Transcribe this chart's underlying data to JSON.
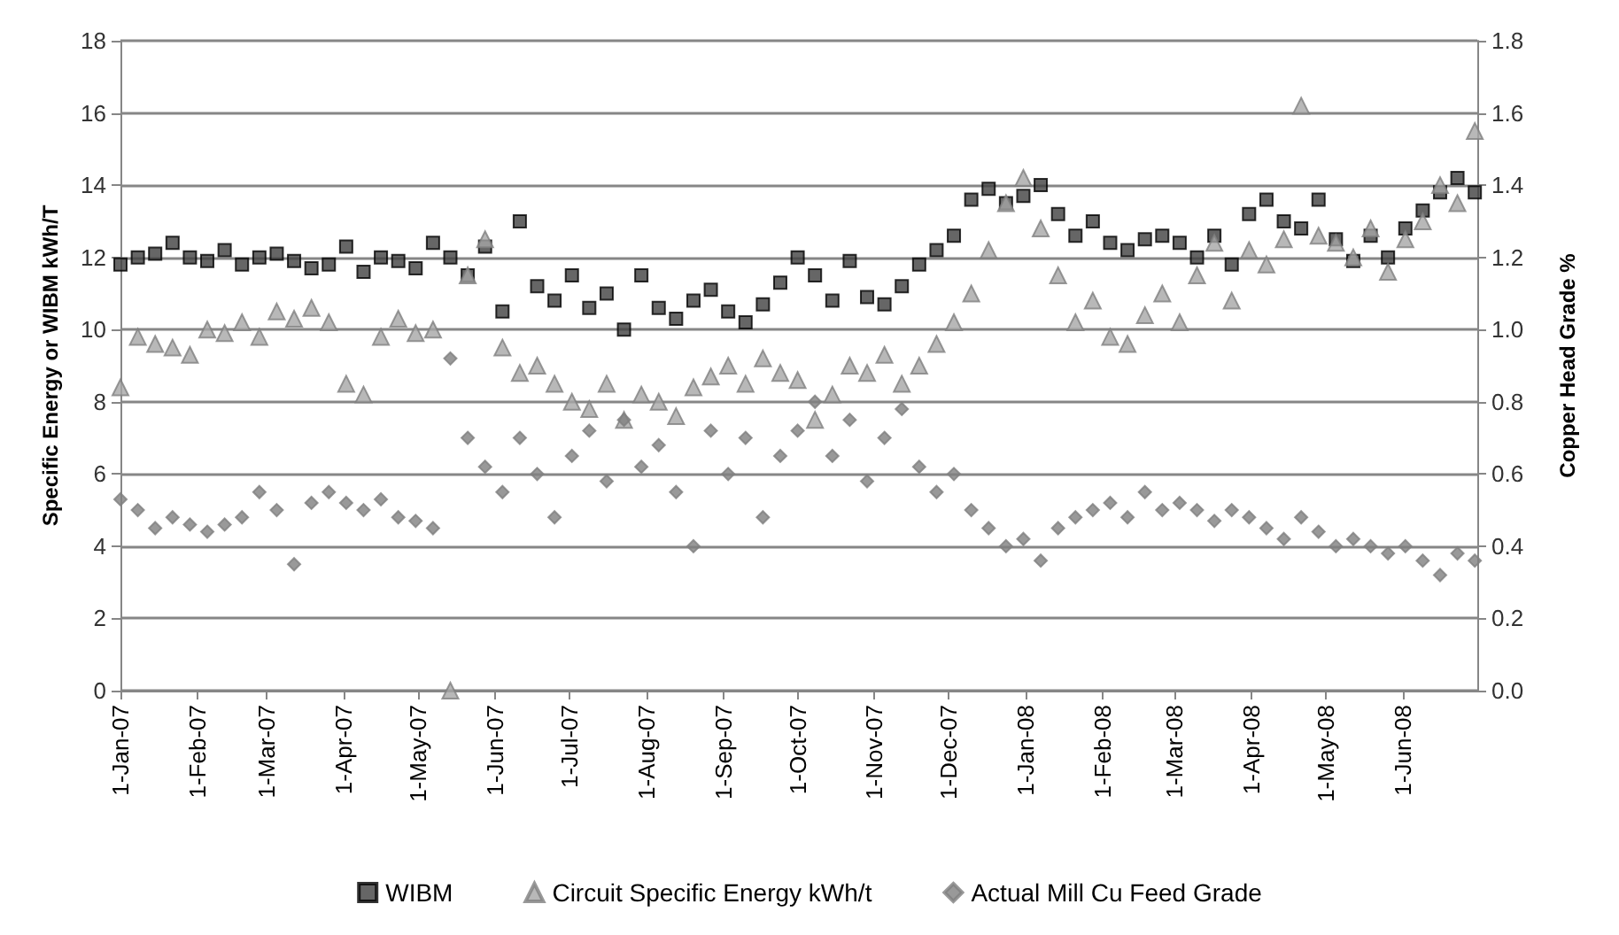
{
  "chart_data": {
    "type": "scatter",
    "ylabel": "Specific Energy or WIBM kWh/T",
    "y2label": "Copper Head Grade %",
    "x": [
      "2007-01-01",
      "2007-01-08",
      "2007-01-15",
      "2007-01-22",
      "2007-01-29",
      "2007-02-05",
      "2007-02-12",
      "2007-02-19",
      "2007-02-26",
      "2007-03-05",
      "2007-03-12",
      "2007-03-19",
      "2007-03-26",
      "2007-04-02",
      "2007-04-09",
      "2007-04-16",
      "2007-04-23",
      "2007-04-30",
      "2007-05-07",
      "2007-05-14",
      "2007-05-21",
      "2007-05-28",
      "2007-06-04",
      "2007-06-11",
      "2007-06-18",
      "2007-06-25",
      "2007-07-02",
      "2007-07-09",
      "2007-07-16",
      "2007-07-23",
      "2007-07-30",
      "2007-08-06",
      "2007-08-13",
      "2007-08-20",
      "2007-08-27",
      "2007-09-03",
      "2007-09-10",
      "2007-09-17",
      "2007-09-24",
      "2007-10-01",
      "2007-10-08",
      "2007-10-15",
      "2007-10-22",
      "2007-10-29",
      "2007-11-05",
      "2007-11-12",
      "2007-11-19",
      "2007-11-26",
      "2007-12-03",
      "2007-12-10",
      "2007-12-17",
      "2007-12-24",
      "2007-12-31",
      "2008-01-07",
      "2008-01-14",
      "2008-01-21",
      "2008-01-28",
      "2008-02-04",
      "2008-02-11",
      "2008-02-18",
      "2008-02-25",
      "2008-03-03",
      "2008-03-10",
      "2008-03-17",
      "2008-03-24",
      "2008-03-31",
      "2008-04-07",
      "2008-04-14",
      "2008-04-21",
      "2008-04-28",
      "2008-05-05",
      "2008-05-12",
      "2008-05-19",
      "2008-05-26",
      "2008-06-02",
      "2008-06-09",
      "2008-06-16",
      "2008-06-23",
      "2008-06-30"
    ],
    "series": [
      {
        "name": "WIBM",
        "color": "#404040",
        "marker": "square",
        "values": [
          11.8,
          12.0,
          12.1,
          12.4,
          12.0,
          11.9,
          12.2,
          11.8,
          12.0,
          12.1,
          11.9,
          11.7,
          11.8,
          12.3,
          11.6,
          12.0,
          11.9,
          11.7,
          12.4,
          12.0,
          11.5,
          12.3,
          10.5,
          13.0,
          11.2,
          10.8,
          11.5,
          10.6,
          11.0,
          10.0,
          11.5,
          10.6,
          10.3,
          10.8,
          11.1,
          10.5,
          10.2,
          10.7,
          11.3,
          12.0,
          11.5,
          10.8,
          11.9,
          10.9,
          10.7,
          11.2,
          11.8,
          12.2,
          12.6,
          13.6,
          13.9,
          13.5,
          13.7,
          14.0,
          13.2,
          12.6,
          13.0,
          12.4,
          12.2,
          12.5,
          12.6,
          12.4,
          12.0,
          12.6,
          11.8,
          13.2,
          13.6,
          13.0,
          12.8,
          13.6,
          12.5,
          11.9,
          12.6,
          12.0,
          12.8,
          13.3,
          13.8,
          14.2,
          13.8
        ]
      },
      {
        "name": "Circuit Specific Energy kWh/t",
        "color": "#a6a6a6",
        "marker": "triangle",
        "values": [
          8.4,
          9.8,
          9.6,
          9.5,
          9.3,
          10.0,
          9.9,
          10.2,
          9.8,
          10.5,
          10.3,
          10.6,
          10.2,
          8.5,
          8.2,
          9.8,
          10.3,
          9.9,
          10.0,
          0,
          11.5,
          12.5,
          9.5,
          8.8,
          9.0,
          8.5,
          8.0,
          7.8,
          8.5,
          7.5,
          8.2,
          8.0,
          7.6,
          8.4,
          8.7,
          9.0,
          8.5,
          9.2,
          8.8,
          8.6,
          7.5,
          8.2,
          9.0,
          8.8,
          9.3,
          8.5,
          9.0,
          9.6,
          10.2,
          11.0,
          12.2,
          13.5,
          14.2,
          12.8,
          11.5,
          10.2,
          10.8,
          9.8,
          9.6,
          10.4,
          11.0,
          10.2,
          11.5,
          12.4,
          10.8,
          12.2,
          11.8,
          12.5,
          16.2,
          12.6,
          12.4,
          12.0,
          12.8,
          11.6,
          12.5,
          13.0,
          14.0,
          13.5,
          15.5
        ]
      },
      {
        "name": "Actual Mill Cu Feed Grade",
        "color": "#808080",
        "marker": "diamond",
        "axis": "y2",
        "values": [
          0.53,
          0.5,
          0.45,
          0.48,
          0.46,
          0.44,
          0.46,
          0.48,
          0.55,
          0.5,
          0.35,
          0.52,
          0.55,
          0.52,
          0.5,
          0.53,
          0.48,
          0.47,
          0.45,
          0.92,
          0.7,
          0.62,
          0.55,
          0.7,
          0.6,
          0.48,
          0.65,
          0.72,
          0.58,
          0.75,
          0.62,
          0.68,
          0.55,
          0.4,
          0.72,
          0.6,
          0.7,
          0.48,
          0.65,
          0.72,
          0.8,
          0.65,
          0.75,
          0.58,
          0.7,
          0.78,
          0.62,
          0.55,
          0.6,
          0.5,
          0.45,
          0.4,
          0.42,
          0.36,
          0.45,
          0.48,
          0.5,
          0.52,
          0.48,
          0.55,
          0.5,
          0.52,
          0.5,
          0.47,
          0.5,
          0.48,
          0.45,
          0.42,
          0.48,
          0.44,
          0.4,
          0.42,
          0.4,
          0.38,
          0.4,
          0.36,
          0.32,
          0.38,
          0.36
        ]
      }
    ],
    "xlim": [
      "2007-01-01",
      "2008-07-01"
    ],
    "xticks": [
      {
        "value": "2007-01-01",
        "label": "1-Jan-07"
      },
      {
        "value": "2007-02-01",
        "label": "1-Feb-07"
      },
      {
        "value": "2007-03-01",
        "label": "1-Mar-07"
      },
      {
        "value": "2007-04-01",
        "label": "1-Apr-07"
      },
      {
        "value": "2007-05-01",
        "label": "1-May-07"
      },
      {
        "value": "2007-06-01",
        "label": "1-Jun-07"
      },
      {
        "value": "2007-07-01",
        "label": "1-Jul-07"
      },
      {
        "value": "2007-08-01",
        "label": "1-Aug-07"
      },
      {
        "value": "2007-09-01",
        "label": "1-Sep-07"
      },
      {
        "value": "2007-10-01",
        "label": "1-Oct-07"
      },
      {
        "value": "2007-11-01",
        "label": "1-Nov-07"
      },
      {
        "value": "2007-12-01",
        "label": "1-Dec-07"
      },
      {
        "value": "2008-01-01",
        "label": "1-Jan-08"
      },
      {
        "value": "2008-02-01",
        "label": "1-Feb-08"
      },
      {
        "value": "2008-03-01",
        "label": "1-Mar-08"
      },
      {
        "value": "2008-04-01",
        "label": "1-Apr-08"
      },
      {
        "value": "2008-05-01",
        "label": "1-May-08"
      },
      {
        "value": "2008-06-01",
        "label": "1-Jun-08"
      }
    ],
    "ylim": [
      0,
      18
    ],
    "yticks": [
      0,
      2,
      4,
      6,
      8,
      10,
      12,
      14,
      16,
      18
    ],
    "y2lim": [
      0,
      1.8
    ],
    "y2ticks": [
      {
        "value": 0,
        "label": "0.0"
      },
      0.2,
      0.4,
      0.6,
      0.8,
      {
        "value": 1,
        "label": "1.0"
      },
      1.2,
      1.4,
      1.6,
      1.8
    ],
    "grid": "y",
    "legend": "bottom"
  }
}
